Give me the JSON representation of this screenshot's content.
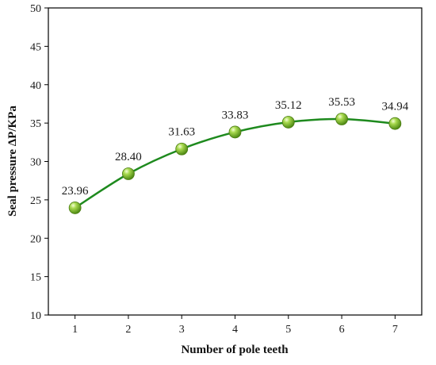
{
  "chart_data": {
    "type": "line",
    "xlabel": "Number of pole teeth",
    "ylabel": "Seal pressure ΔP/KPa",
    "x": [
      1,
      2,
      3,
      4,
      5,
      6,
      7
    ],
    "values": [
      23.96,
      28.4,
      31.63,
      33.83,
      35.12,
      35.53,
      34.94
    ],
    "data_labels": [
      "23.96",
      "28.40",
      "31.63",
      "33.83",
      "35.12",
      "35.53",
      "34.94"
    ],
    "xlim": [
      0.5,
      7.5
    ],
    "ylim": [
      10,
      50
    ],
    "xticks": [
      1,
      2,
      3,
      4,
      5,
      6,
      7
    ],
    "yticks": [
      10,
      15,
      20,
      25,
      30,
      35,
      40,
      45,
      50
    ],
    "grid": false,
    "legend": "none",
    "line_color": "#1e8a1e",
    "marker_color": "#8cc63f"
  }
}
